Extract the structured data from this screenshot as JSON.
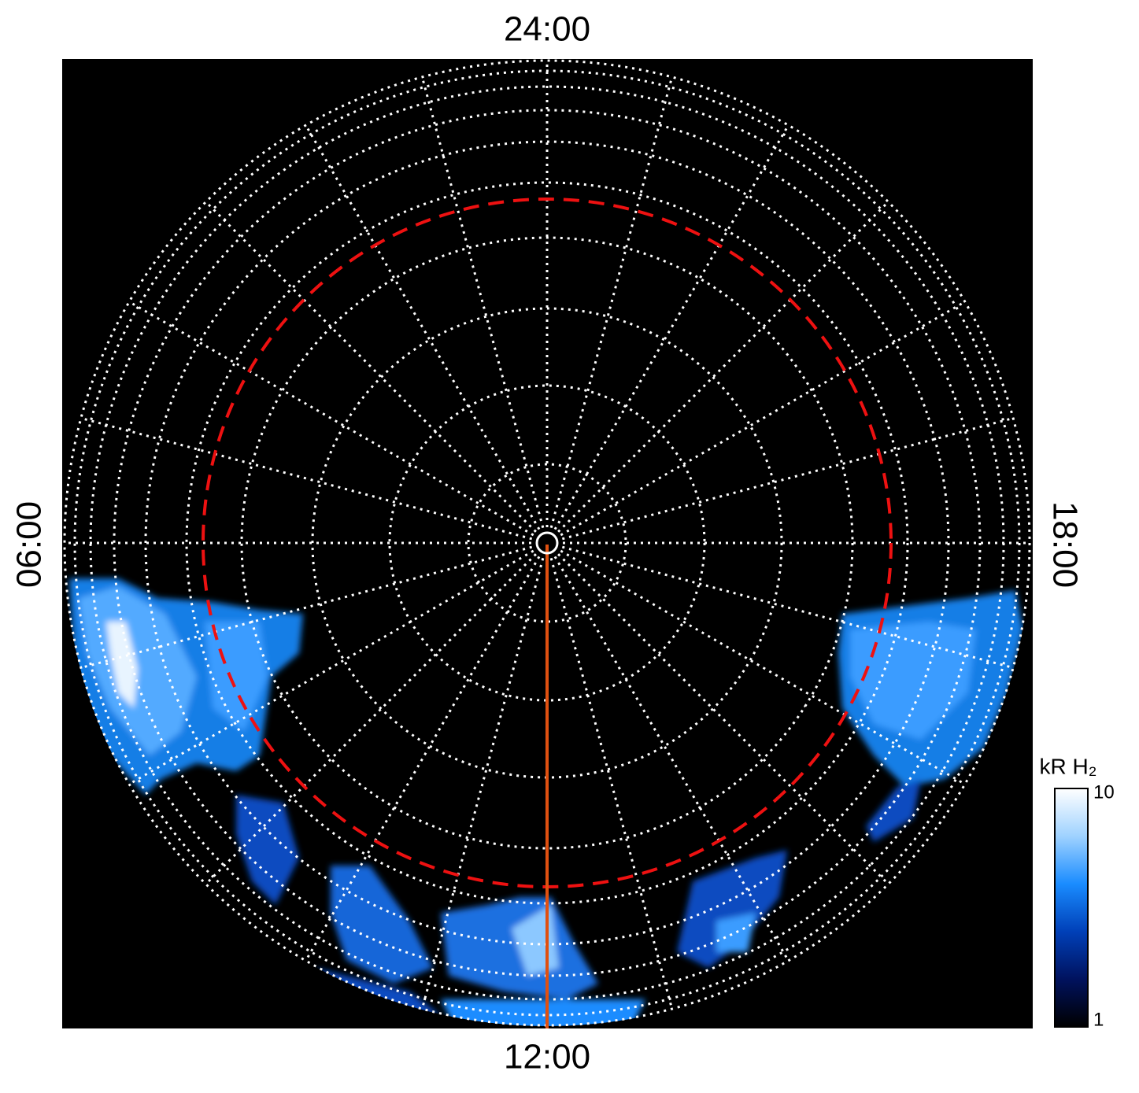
{
  "chart_data": {
    "type": "polar-map",
    "local_time_labels": {
      "top": "24:00",
      "bottom": "12:00",
      "left": "06:00",
      "right": "18:00"
    },
    "colorbar": {
      "label": "kR H₂",
      "log": true,
      "lim": [
        1,
        10
      ],
      "ticks": [
        1,
        10
      ],
      "colors": [
        "#000000",
        "#00125e",
        "#0040b8",
        "#1a8cff",
        "#9fd2ff",
        "#ffffff"
      ]
    }
  }
}
